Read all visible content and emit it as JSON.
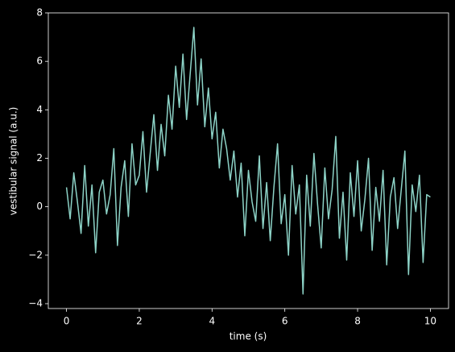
{
  "chart_data": {
    "type": "line",
    "xlabel": "time (s)",
    "ylabel": "vestibular signal (a.u.)",
    "x": [
      0,
      0.1,
      0.2,
      0.3,
      0.4,
      0.5,
      0.6,
      0.7,
      0.8,
      0.9,
      1,
      1.1,
      1.2,
      1.3,
      1.4,
      1.5,
      1.6,
      1.7,
      1.8,
      1.9,
      2,
      2.1,
      2.2,
      2.3,
      2.4,
      2.5,
      2.6,
      2.7,
      2.8,
      2.9,
      3,
      3.1,
      3.2,
      3.3,
      3.4,
      3.5,
      3.6,
      3.7,
      3.8,
      3.9,
      4,
      4.1,
      4.2,
      4.3,
      4.4,
      4.5,
      4.6,
      4.7,
      4.8,
      4.9,
      5,
      5.1,
      5.2,
      5.3,
      5.4,
      5.5,
      5.6,
      5.7,
      5.8,
      5.9,
      6,
      6.1,
      6.2,
      6.3,
      6.4,
      6.5,
      6.6,
      6.7,
      6.8,
      6.9,
      7,
      7.1,
      7.2,
      7.3,
      7.4,
      7.5,
      7.6,
      7.7,
      7.8,
      7.9,
      8,
      8.1,
      8.2,
      8.3,
      8.4,
      8.5,
      8.6,
      8.7,
      8.8,
      8.9,
      9,
      9.1,
      9.2,
      9.3,
      9.4,
      9.5,
      9.6,
      9.7,
      9.8,
      9.9,
      10
    ],
    "values": [
      0.8,
      -0.5,
      1.4,
      0.2,
      -1.1,
      1.7,
      -0.8,
      0.9,
      -1.9,
      0.6,
      1.1,
      -0.3,
      0.5,
      2.4,
      -1.6,
      0.8,
      1.9,
      -0.4,
      2.6,
      0.9,
      1.3,
      3.1,
      0.6,
      2.2,
      3.8,
      1.5,
      3.4,
      2.1,
      4.6,
      3.2,
      5.8,
      4.1,
      6.3,
      3.6,
      5.5,
      7.4,
      4.2,
      6.1,
      3.3,
      4.9,
      2.8,
      3.9,
      1.6,
      3.2,
      2.4,
      1.1,
      2.3,
      0.4,
      1.8,
      -1.2,
      1.5,
      0.2,
      -0.6,
      2.1,
      -0.9,
      1.0,
      -1.4,
      0.8,
      2.6,
      -0.7,
      0.5,
      -2.0,
      1.7,
      -0.3,
      0.9,
      -3.6,
      1.3,
      -0.8,
      2.2,
      0.1,
      -1.7,
      1.6,
      -0.5,
      0.7,
      2.9,
      -1.3,
      0.6,
      -2.2,
      1.4,
      -0.4,
      1.9,
      -1.0,
      0.3,
      2.0,
      -1.8,
      0.8,
      -0.6,
      1.5,
      -2.4,
      0.4,
      1.2,
      -0.9,
      0.7,
      2.3,
      -2.8,
      0.9,
      -0.2,
      1.3,
      -2.3,
      0.5,
      0.4
    ],
    "color": "#8dd3c7",
    "xlim": [
      -0.5,
      10.5
    ],
    "ylim": [
      -4.2,
      8
    ],
    "xticks": [
      0,
      2,
      4,
      6,
      8,
      10
    ],
    "yticks": [
      {
        "value": -4,
        "label": "−4"
      },
      {
        "value": -2,
        "label": "−2"
      },
      0,
      2,
      4,
      6,
      8
    ]
  }
}
